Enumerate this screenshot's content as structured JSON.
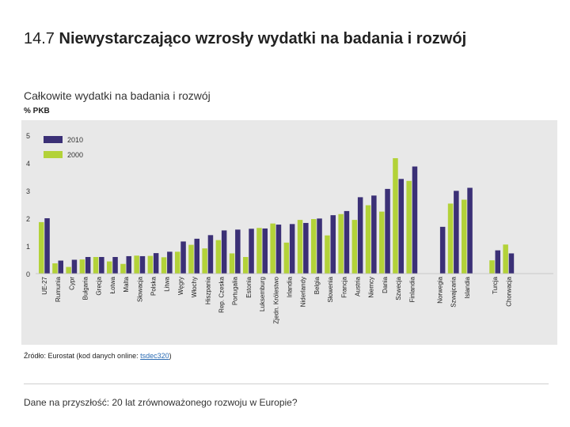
{
  "header": {
    "number": "14.7",
    "title": "Niewystarczająco wzrosły wydatki na badania i rozwój"
  },
  "subtitle": "Całkowite wydatki na badania i rozwój",
  "unit_label": "% PKB",
  "source": {
    "prefix": "Źródło: Eurostat (kod danych online: ",
    "code": "tsdec320",
    "suffix": ")"
  },
  "footer": "Dane na przyszłość: 20 lat zrównoważonego rozwoju w Europie?",
  "colors": {
    "series_2010": "#3b3076",
    "series_2000": "#b3d239",
    "panel": "#e8e8e8"
  },
  "chart_data": {
    "type": "bar",
    "ylim": [
      0,
      5
    ],
    "yticks": [
      0,
      1,
      2,
      3,
      4,
      5
    ],
    "legend": [
      "2010",
      "2000"
    ],
    "categories": [
      "UE-27",
      "Rumunia",
      "Cypr",
      "Bułgaria",
      "Grecja",
      "Łotwa",
      "Malta",
      "Słowacja",
      "Polska",
      "Litwa",
      "Węgry",
      "Włochy",
      "Hiszpania",
      "Rep. Czeska",
      "Portugalia",
      "Estonia",
      "Luksemburg",
      "Zjedn. Królestwo",
      "Irlandia",
      "Niderlandy",
      "Belgia",
      "Słowenia",
      "Francja",
      "Austria",
      "Niemcy",
      "Dania",
      "Szwecja",
      "Finlandia",
      "Norwegia",
      "Szwajcaria",
      "Islandia",
      "Turcja",
      "Chorwacja"
    ],
    "series": [
      {
        "name": "2000",
        "values": [
          1.86,
          0.37,
          0.24,
          0.51,
          0.6,
          0.44,
          0.35,
          0.65,
          0.64,
          0.59,
          0.79,
          1.04,
          0.91,
          1.21,
          0.73,
          0.6,
          1.65,
          1.81,
          1.12,
          1.94,
          1.97,
          1.38,
          2.15,
          1.94,
          2.47,
          2.24,
          4.17,
          3.35,
          null,
          2.53,
          2.67,
          0.48,
          1.05
        ]
      },
      {
        "name": "2010",
        "values": [
          2.0,
          0.47,
          0.5,
          0.6,
          0.6,
          0.6,
          0.63,
          0.63,
          0.74,
          0.79,
          1.16,
          1.26,
          1.39,
          1.56,
          1.59,
          1.62,
          1.63,
          1.77,
          1.79,
          1.83,
          1.99,
          2.11,
          2.26,
          2.76,
          2.82,
          3.06,
          3.42,
          3.87,
          1.69,
          2.99,
          3.1,
          0.84,
          0.73
        ]
      }
    ],
    "gaps_after": [
      "Finlandia",
      "Islandia"
    ]
  }
}
